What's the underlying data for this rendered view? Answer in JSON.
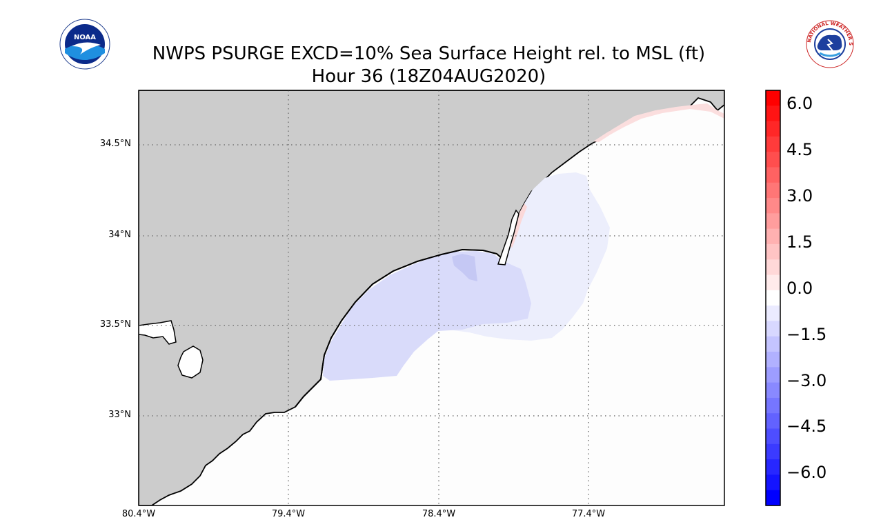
{
  "title": {
    "line1": "NWPS PSURGE EXCD=10% Sea Surface Height rel. to MSL (ft)",
    "line2": "Hour 36 (18Z04AUG2020)"
  },
  "logos": {
    "left": {
      "name": "noaa-logo",
      "text": "NOAA"
    },
    "right": {
      "name": "nws-logo",
      "text": "NATIONAL WEATHER SERVICE"
    }
  },
  "map": {
    "lat_labels": [
      "34.5°N",
      "34°N",
      "33.5°N",
      "33°N"
    ],
    "lon_labels": [
      "80.4°W",
      "79.4°W",
      "78.4°W",
      "77.4°W"
    ],
    "land_color": "#cccccc",
    "ocean_color": "#fdfdfd",
    "grid": "dotted"
  },
  "colorbar": {
    "ticks": [
      "6.0",
      "4.5",
      "3.0",
      "1.5",
      "0.0",
      "−1.5",
      "−3.0",
      "−4.5",
      "−6.0"
    ],
    "range": [
      -6.75,
      6.75
    ],
    "top_color": "#ff0000",
    "bottom_color": "#0000ff"
  }
}
